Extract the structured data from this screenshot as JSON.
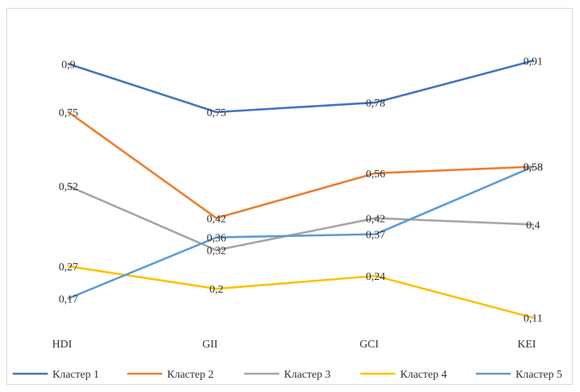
{
  "chart_data": {
    "type": "line",
    "title": "",
    "xlabel": "",
    "ylabel": "",
    "categories": [
      "HDI",
      "GII",
      "GCI",
      "KEI"
    ],
    "ylim": [
      0,
      1
    ],
    "grid": false,
    "legend_position": "bottom",
    "series": [
      {
        "name": "Кластер 1",
        "color": "#4472c4",
        "values": [
          0.9,
          0.75,
          0.78,
          0.91
        ],
        "labels": [
          "0,9",
          "0,75",
          "0,78",
          "0,91"
        ]
      },
      {
        "name": "Кластер 2",
        "color": "#ed7d31",
        "values": [
          0.75,
          0.42,
          0.56,
          0.58
        ],
        "labels": [
          "0,75",
          "0,42",
          "0,56",
          "0,58"
        ]
      },
      {
        "name": "Кластер 3",
        "color": "#a5a5a5",
        "values": [
          0.52,
          0.32,
          0.42,
          0.4
        ],
        "labels": [
          "0,52",
          "0,32",
          "0,42",
          "0,4"
        ]
      },
      {
        "name": "Кластер 4",
        "color": "#ffc000",
        "values": [
          0.27,
          0.2,
          0.24,
          0.11
        ],
        "labels": [
          "0,27",
          "0,2",
          "0,24",
          "0,11"
        ]
      },
      {
        "name": "Кластер 5",
        "color": "#5b9bd5",
        "values": [
          0.17,
          0.36,
          0.37,
          0.58
        ],
        "labels": [
          "0,17",
          "0,36",
          "0,37",
          "0,58"
        ]
      }
    ]
  }
}
